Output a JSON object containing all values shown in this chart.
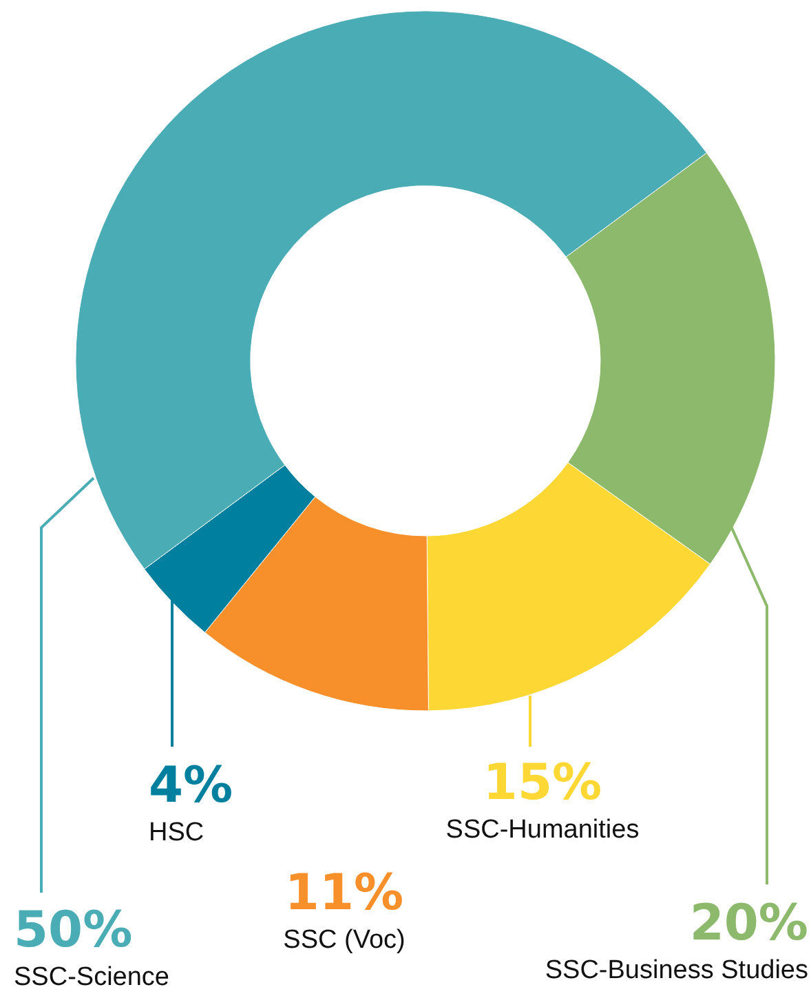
{
  "chart_data": {
    "type": "donut",
    "categories": [
      "SSC-Business Studies",
      "SSC-Humanities",
      "SSC (Voc)",
      "HSC",
      "SSC-Science"
    ],
    "values": [
      20,
      15,
      11,
      4,
      50
    ],
    "colors": [
      "#8cb96b",
      "#fdd835",
      "#f7902a",
      "#00809e",
      "#4aacb5"
    ],
    "value_labels": [
      "20%",
      "15%",
      "11%",
      "4%",
      "50%"
    ]
  }
}
